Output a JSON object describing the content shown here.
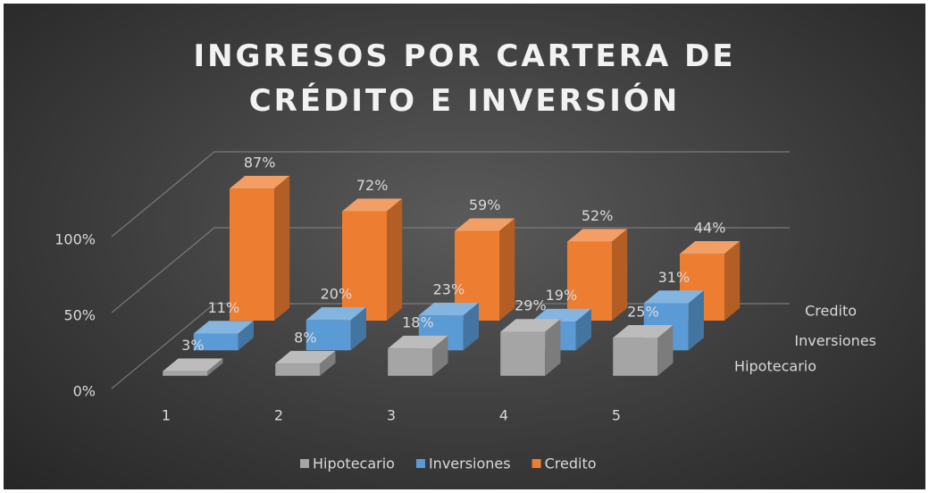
{
  "chart_data": {
    "type": "bar3d",
    "title": "INGRESOS POR CARTERA DE CRÉDITO E INVERSIÓN",
    "categories": [
      "1",
      "2",
      "3",
      "4",
      "5"
    ],
    "series": [
      {
        "name": "Hipotecario",
        "color": "#a5a5a5",
        "values": [
          3,
          8,
          18,
          29,
          25
        ],
        "value_labels": [
          "3%",
          "8%",
          "18%",
          "29%",
          "25%"
        ]
      },
      {
        "name": "Inversiones",
        "color": "#5b9bd5",
        "values": [
          11,
          20,
          23,
          19,
          31
        ],
        "value_labels": [
          "11%",
          "20%",
          "23%",
          "19%",
          "31%"
        ]
      },
      {
        "name": "Credito",
        "color": "#ed7d31",
        "values": [
          87,
          72,
          59,
          52,
          44
        ],
        "value_labels": [
          "87%",
          "72%",
          "59%",
          "52%",
          "44%"
        ]
      }
    ],
    "ylim": [
      0,
      100
    ],
    "yticks": [
      {
        "value": 0,
        "label": "0%"
      },
      {
        "value": 50,
        "label": "50%"
      },
      {
        "value": 100,
        "label": "100%"
      }
    ],
    "grid": true,
    "legend": "bottom"
  }
}
